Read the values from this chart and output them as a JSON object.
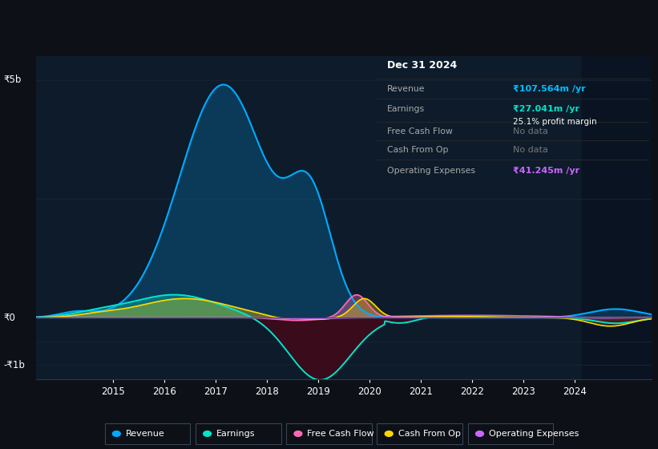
{
  "bg_color": "#0d1117",
  "plot_bg_color": "#0d1b2a",
  "grid_color": "#1a2535",
  "zero_line_color": "#3a4a5a",
  "ylim": [
    -1300,
    5500
  ],
  "xlim": [
    2013.5,
    2025.5
  ],
  "xlabel_years": [
    2015,
    2016,
    2017,
    2018,
    2019,
    2020,
    2021,
    2022,
    2023,
    2024
  ],
  "info_box": {
    "title": "Dec 31 2024",
    "rows": [
      {
        "label": "Revenue",
        "value": "₹107.564m /yr",
        "value_color": "#00bfff",
        "sub_value": null
      },
      {
        "label": "Earnings",
        "value": "₹27.041m /yr",
        "value_color": "#00e5cc",
        "sub_value": "25.1% profit margin"
      },
      {
        "label": "Free Cash Flow",
        "value": "No data",
        "value_color": "#777777",
        "sub_value": null
      },
      {
        "label": "Cash From Op",
        "value": "No data",
        "value_color": "#777777",
        "sub_value": null
      },
      {
        "label": "Operating Expenses",
        "value": "₹41.245m /yr",
        "value_color": "#cc66ff",
        "sub_value": null
      }
    ]
  },
  "legend": [
    {
      "label": "Revenue",
      "color": "#00aaff"
    },
    {
      "label": "Earnings",
      "color": "#00e5cc"
    },
    {
      "label": "Free Cash Flow",
      "color": "#ff69b4"
    },
    {
      "label": "Cash From Op",
      "color": "#ffd700"
    },
    {
      "label": "Operating Expenses",
      "color": "#cc66ff"
    }
  ],
  "revenue_color": "#00aaff",
  "earnings_color": "#00e5cc",
  "earnings_neg_fill": "#3d0a1a",
  "fcf_color": "#ff69b4",
  "cashop_color": "#ffd700",
  "opexp_color": "#cc66ff"
}
